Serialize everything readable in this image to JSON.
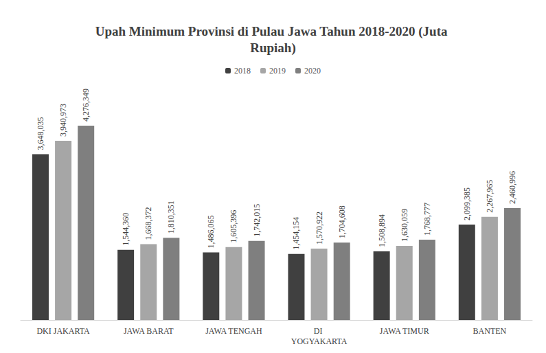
{
  "chart_data": {
    "type": "bar",
    "title": "Upah Minimum Provinsi di Pulau Jawa Tahun 2018-2020 (Juta Rupiah)",
    "categories": [
      "DKI JAKARTA",
      "JAWA BARAT",
      "JAWA TENGAH",
      "DI YOGYAKARTA",
      "JAWA TIMUR",
      "BANTEN"
    ],
    "series": [
      {
        "name": "2018",
        "color": "#404040",
        "values": [
          3648035,
          1544360,
          1486065,
          1454154,
          1508894,
          2099385
        ],
        "value_labels": [
          "3,648,035",
          "1,544,360",
          "1,486,065",
          "1,454,154",
          "1,508,894",
          "2,099,385"
        ]
      },
      {
        "name": "2019",
        "color": "#a6a6a6",
        "values": [
          3940973,
          1668372,
          1605396,
          1570922,
          1630059,
          2267965
        ],
        "value_labels": [
          "3,940,973",
          "1,668,372",
          "1,605,396",
          "1,570,922",
          "1,630,059",
          "2,267,965"
        ]
      },
      {
        "name": "2020",
        "color": "#7f7f7f",
        "values": [
          4276349,
          1810351,
          1742015,
          1704608,
          1768777,
          2460996
        ],
        "value_labels": [
          "4,276,349",
          "1,810,351",
          "1,742,015",
          "1,704,608",
          "1,768,777",
          "2,460,996"
        ]
      }
    ],
    "legend": "top",
    "data_labels": true,
    "grid": false,
    "tick_labels": "x"
  }
}
